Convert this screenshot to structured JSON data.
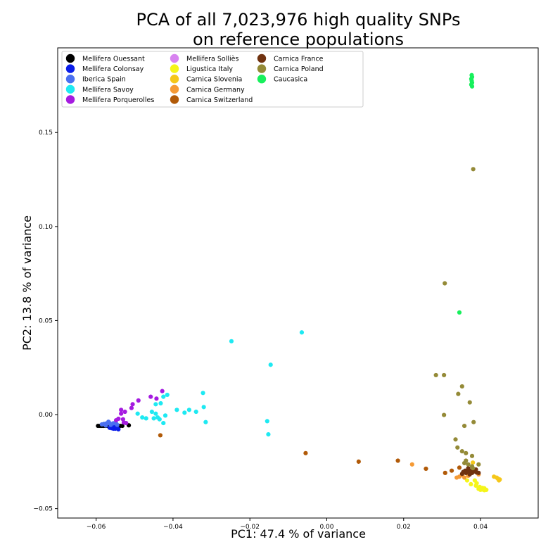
{
  "chart_data": {
    "type": "scatter",
    "title_line1": "PCA of all 7,023,976 high quality SNPs",
    "title_line2": "on reference populations",
    "xlabel": "PC1: 47.4 % of variance",
    "ylabel": "PC2: 13.8 % of variance",
    "xlim": [
      -0.07,
      0.055
    ],
    "ylim": [
      -0.055,
      0.195
    ],
    "x_ticks": [
      -0.06,
      -0.04,
      -0.02,
      0.0,
      0.02,
      0.04
    ],
    "x_tick_labels": [
      "−0.06",
      "−0.04",
      "−0.02",
      "0.00",
      "0.02",
      "0.04"
    ],
    "y_ticks": [
      -0.05,
      0.0,
      0.05,
      0.1,
      0.15
    ],
    "y_tick_labels": [
      "−0.05",
      "0.00",
      "0.05",
      "0.10",
      "0.15"
    ],
    "grid": false,
    "legend_position": "top-left",
    "series": [
      {
        "name": "Mellifera Ouessant",
        "color": "#000000",
        "points": [
          [
            -0.0595,
            -0.006
          ],
          [
            -0.059,
            -0.006
          ],
          [
            -0.0585,
            -0.006
          ],
          [
            -0.058,
            -0.006
          ],
          [
            -0.0575,
            -0.006
          ],
          [
            -0.057,
            -0.006
          ],
          [
            -0.0565,
            -0.006
          ],
          [
            -0.056,
            -0.006
          ],
          [
            -0.0555,
            -0.006
          ],
          [
            -0.055,
            -0.006
          ],
          [
            -0.0545,
            -0.006
          ],
          [
            -0.0538,
            -0.006
          ],
          [
            -0.0532,
            -0.006
          ],
          [
            -0.0515,
            -0.0057
          ]
        ]
      },
      {
        "name": "Mellifera Colonsay",
        "color": "#0a1de8",
        "points": [
          [
            -0.0565,
            -0.007
          ],
          [
            -0.056,
            -0.0072
          ],
          [
            -0.0555,
            -0.0075
          ],
          [
            -0.055,
            -0.0075
          ],
          [
            -0.0545,
            -0.0072
          ],
          [
            -0.0542,
            -0.0078
          ],
          [
            -0.0558,
            -0.0065
          ],
          [
            -0.0548,
            -0.0068
          ],
          [
            -0.0552,
            -0.0062
          ]
        ]
      },
      {
        "name": "Iberica Spain",
        "color": "#4a6ff0",
        "points": [
          [
            -0.0585,
            -0.0052
          ],
          [
            -0.058,
            -0.005
          ],
          [
            -0.0575,
            -0.0048
          ],
          [
            -0.057,
            -0.0045
          ],
          [
            -0.0565,
            -0.0045
          ],
          [
            -0.0575,
            -0.0058
          ],
          [
            -0.0562,
            -0.0055
          ],
          [
            -0.0555,
            -0.0046
          ],
          [
            -0.0548,
            -0.0048
          ],
          [
            -0.0568,
            -0.0038
          ],
          [
            -0.0545,
            -0.0055
          ]
        ]
      },
      {
        "name": "Mellifera Savoy",
        "color": "#1ee9f2",
        "points": [
          [
            -0.0248,
            0.039
          ],
          [
            -0.0146,
            0.0265
          ],
          [
            -0.0065,
            0.0437
          ],
          [
            -0.0155,
            -0.0035
          ],
          [
            -0.0152,
            -0.0105
          ],
          [
            -0.0315,
            -0.004
          ],
          [
            -0.032,
            0.004
          ],
          [
            -0.0322,
            0.0115
          ],
          [
            -0.034,
            0.0015
          ],
          [
            -0.0358,
            0.0025
          ],
          [
            -0.037,
            0.001
          ],
          [
            -0.039,
            0.0025
          ],
          [
            -0.0415,
            0.0105
          ],
          [
            -0.0425,
            0.0095
          ],
          [
            -0.0432,
            0.006
          ],
          [
            -0.0445,
            0.0055
          ],
          [
            -0.0435,
            -0.0025
          ],
          [
            -0.0425,
            -0.0045
          ],
          [
            -0.042,
            -0.0005
          ],
          [
            -0.0445,
            0.0005
          ],
          [
            -0.045,
            -0.002
          ],
          [
            -0.047,
            -0.002
          ],
          [
            -0.048,
            -0.0015
          ],
          [
            -0.0492,
            0.0005
          ],
          [
            -0.0455,
            0.0015
          ],
          [
            -0.044,
            -0.0015
          ]
        ]
      },
      {
        "name": "Mellifera Porquerolles",
        "color": "#a51be0",
        "points": [
          [
            -0.0428,
            0.0125
          ],
          [
            -0.0443,
            0.0085
          ],
          [
            -0.0458,
            0.0095
          ],
          [
            -0.049,
            0.0075
          ],
          [
            -0.0505,
            0.0055
          ],
          [
            -0.0508,
            0.0035
          ],
          [
            -0.0525,
            0.0015
          ],
          [
            -0.0535,
            0.0025
          ],
          [
            -0.0535,
            0.0005
          ],
          [
            -0.0542,
            -0.0022
          ],
          [
            -0.0528,
            -0.0042
          ],
          [
            -0.0522,
            -0.0045
          ],
          [
            -0.053,
            -0.0025
          ],
          [
            -0.0548,
            -0.003
          ]
        ]
      },
      {
        "name": "Mellifera Solliès",
        "color": "#d883f0",
        "points": []
      },
      {
        "name": "Ligustica Italy",
        "color": "#f5f51a",
        "points": [
          [
            0.0395,
            -0.0395
          ],
          [
            0.04,
            -0.04
          ],
          [
            0.0405,
            -0.0398
          ],
          [
            0.041,
            -0.0402
          ],
          [
            0.0415,
            -0.04
          ],
          [
            0.0405,
            -0.039
          ],
          [
            0.041,
            -0.0392
          ],
          [
            0.0398,
            -0.0385
          ],
          [
            0.0388,
            -0.0378
          ],
          [
            0.0375,
            -0.037
          ],
          [
            0.0365,
            -0.035
          ],
          [
            0.039,
            -0.0365
          ],
          [
            0.0385,
            -0.035
          ]
        ]
      },
      {
        "name": "Carnica Slovenia",
        "color": "#f5c71a",
        "points": [
          [
            0.0435,
            -0.033
          ],
          [
            0.0445,
            -0.034
          ],
          [
            0.045,
            -0.0345
          ],
          [
            0.0448,
            -0.035
          ],
          [
            0.0442,
            -0.0335
          ],
          [
            0.0375,
            -0.0305
          ],
          [
            0.038,
            -0.0255
          ],
          [
            0.0365,
            -0.031
          ],
          [
            0.0385,
            -0.0295
          ]
        ]
      },
      {
        "name": "Carnica Germany",
        "color": "#f59a35",
        "points": [
          [
            0.0222,
            -0.0265
          ],
          [
            0.0338,
            -0.0335
          ],
          [
            0.0345,
            -0.033
          ],
          [
            0.0352,
            -0.0322
          ],
          [
            0.0368,
            -0.0325
          ],
          [
            0.0395,
            -0.0318
          ],
          [
            0.0358,
            -0.0335
          ]
        ]
      },
      {
        "name": "Carnica Switzerland",
        "color": "#b15a08",
        "points": [
          [
            -0.0433,
            -0.011
          ],
          [
            -0.0055,
            -0.0205
          ],
          [
            0.0083,
            -0.025
          ],
          [
            0.0185,
            -0.0245
          ],
          [
            0.0258,
            -0.0288
          ],
          [
            0.0308,
            -0.031
          ],
          [
            0.0325,
            -0.0298
          ],
          [
            0.0345,
            -0.0282
          ]
        ]
      },
      {
        "name": "Carnica France",
        "color": "#703210",
        "points": [
          [
            0.0355,
            -0.0305
          ],
          [
            0.036,
            -0.0298
          ],
          [
            0.0365,
            -0.03
          ],
          [
            0.037,
            -0.03
          ],
          [
            0.0375,
            -0.0298
          ],
          [
            0.038,
            -0.0305
          ],
          [
            0.0385,
            -0.0302
          ],
          [
            0.039,
            -0.0308
          ],
          [
            0.0395,
            -0.031
          ],
          [
            0.0372,
            -0.0318
          ],
          [
            0.0362,
            -0.031
          ],
          [
            0.0378,
            -0.031
          ],
          [
            0.0352,
            -0.0315
          ],
          [
            0.0388,
            -0.0292
          ],
          [
            0.0368,
            -0.0285
          ]
        ]
      },
      {
        "name": "Carnica Poland",
        "color": "#948a37",
        "points": [
          [
            0.0381,
            0.1305
          ],
          [
            0.0307,
            0.0698
          ],
          [
            0.0284,
            0.021
          ],
          [
            0.0305,
            0.021
          ],
          [
            0.0352,
            0.015
          ],
          [
            0.0342,
            0.011
          ],
          [
            0.0372,
            0.0065
          ],
          [
            0.0305,
            -0.0002
          ],
          [
            0.0358,
            -0.006
          ],
          [
            0.0382,
            -0.004
          ],
          [
            0.0335,
            -0.0132
          ],
          [
            0.034,
            -0.0175
          ],
          [
            0.0352,
            -0.0195
          ],
          [
            0.0362,
            -0.0205
          ],
          [
            0.0378,
            -0.022
          ],
          [
            0.0362,
            -0.0245
          ],
          [
            0.0368,
            -0.0265
          ],
          [
            0.0378,
            -0.0275
          ],
          [
            0.0358,
            -0.0258
          ],
          [
            0.038,
            -0.0285
          ],
          [
            0.0395,
            -0.0265
          ]
        ]
      },
      {
        "name": "Caucasica",
        "color": "#17f05c",
        "points": [
          [
            0.0377,
            0.1805
          ],
          [
            0.0378,
            0.1795
          ],
          [
            0.0376,
            0.1785
          ],
          [
            0.0377,
            0.1775
          ],
          [
            0.0378,
            0.1765
          ],
          [
            0.0376,
            0.1755
          ],
          [
            0.0378,
            0.1745
          ],
          [
            0.0345,
            0.0543
          ]
        ]
      }
    ]
  }
}
